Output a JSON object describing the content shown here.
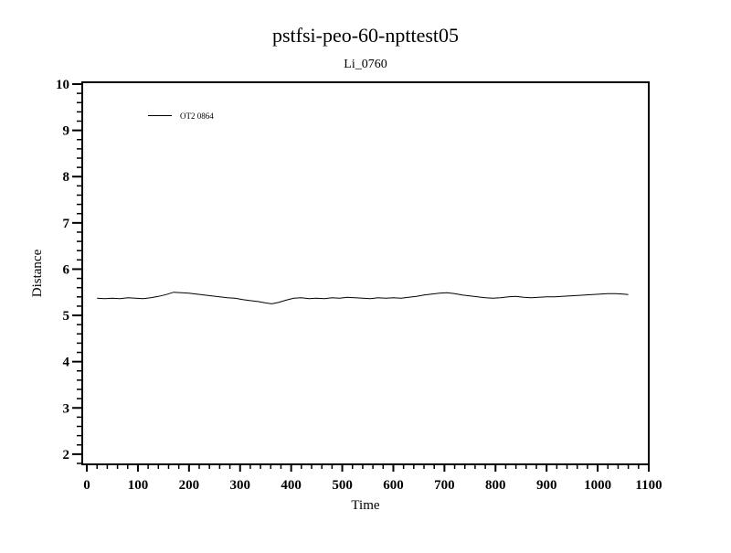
{
  "page": {
    "background": "#ffffff",
    "ink": "#000000"
  },
  "chart_data": {
    "type": "line",
    "title": "pstfsi-peo-60-npttest05",
    "subtitle": "Li_0760",
    "xlabel": "Time",
    "ylabel": "Distance",
    "xlim": [
      -9,
      1100
    ],
    "ylim": [
      1.78,
      10.04
    ],
    "x_major_ticks": [
      0,
      100,
      200,
      300,
      400,
      500,
      600,
      700,
      800,
      900,
      1000,
      1100
    ],
    "x_minor_step": 20,
    "y_major_ticks": [
      2,
      3,
      4,
      5,
      6,
      7,
      8,
      9,
      10
    ],
    "y_minor_step": 0.2,
    "grid": false,
    "legend": {
      "position": "upper-left-inside",
      "entries": [
        {
          "label": "OT2 0864",
          "color": "#000000"
        }
      ]
    },
    "series": [
      {
        "name": "OT2 0864",
        "color": "#000000",
        "points": [
          [
            20,
            5.37
          ],
          [
            35,
            5.36
          ],
          [
            50,
            5.37
          ],
          [
            65,
            5.36
          ],
          [
            80,
            5.38
          ],
          [
            95,
            5.37
          ],
          [
            110,
            5.36
          ],
          [
            125,
            5.38
          ],
          [
            140,
            5.41
          ],
          [
            155,
            5.45
          ],
          [
            170,
            5.5
          ],
          [
            185,
            5.49
          ],
          [
            200,
            5.48
          ],
          [
            215,
            5.46
          ],
          [
            230,
            5.44
          ],
          [
            245,
            5.42
          ],
          [
            260,
            5.4
          ],
          [
            275,
            5.38
          ],
          [
            290,
            5.37
          ],
          [
            305,
            5.34
          ],
          [
            320,
            5.32
          ],
          [
            335,
            5.3
          ],
          [
            350,
            5.27
          ],
          [
            362,
            5.25
          ],
          [
            375,
            5.28
          ],
          [
            390,
            5.33
          ],
          [
            405,
            5.37
          ],
          [
            420,
            5.38
          ],
          [
            435,
            5.36
          ],
          [
            450,
            5.37
          ],
          [
            465,
            5.36
          ],
          [
            480,
            5.38
          ],
          [
            495,
            5.37
          ],
          [
            510,
            5.39
          ],
          [
            525,
            5.38
          ],
          [
            540,
            5.37
          ],
          [
            555,
            5.36
          ],
          [
            570,
            5.38
          ],
          [
            585,
            5.37
          ],
          [
            600,
            5.38
          ],
          [
            615,
            5.37
          ],
          [
            630,
            5.39
          ],
          [
            645,
            5.41
          ],
          [
            660,
            5.44
          ],
          [
            675,
            5.46
          ],
          [
            690,
            5.48
          ],
          [
            705,
            5.49
          ],
          [
            720,
            5.47
          ],
          [
            735,
            5.44
          ],
          [
            750,
            5.42
          ],
          [
            765,
            5.4
          ],
          [
            780,
            5.38
          ],
          [
            795,
            5.37
          ],
          [
            810,
            5.38
          ],
          [
            825,
            5.4
          ],
          [
            840,
            5.41
          ],
          [
            855,
            5.39
          ],
          [
            870,
            5.38
          ],
          [
            885,
            5.39
          ],
          [
            900,
            5.4
          ],
          [
            915,
            5.4
          ],
          [
            930,
            5.41
          ],
          [
            945,
            5.42
          ],
          [
            960,
            5.43
          ],
          [
            975,
            5.44
          ],
          [
            990,
            5.45
          ],
          [
            1005,
            5.46
          ],
          [
            1020,
            5.47
          ],
          [
            1035,
            5.47
          ],
          [
            1050,
            5.46
          ],
          [
            1060,
            5.45
          ]
        ]
      }
    ]
  }
}
